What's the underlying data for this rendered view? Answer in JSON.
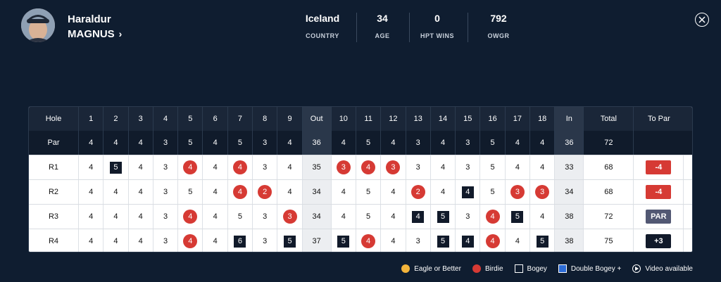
{
  "player": {
    "first_name": "Haraldur",
    "last_name": "MAGNUS"
  },
  "stats": [
    {
      "value": "Iceland",
      "label": "COUNTRY"
    },
    {
      "value": "34",
      "label": "AGE"
    },
    {
      "value": "0",
      "label": "HPT WINS"
    },
    {
      "value": "792",
      "label": "OWGR"
    }
  ],
  "scorecard": {
    "header": [
      "Hole",
      "1",
      "2",
      "3",
      "4",
      "5",
      "6",
      "7",
      "8",
      "9",
      "Out",
      "10",
      "11",
      "12",
      "13",
      "14",
      "15",
      "16",
      "17",
      "18",
      "In",
      "Total",
      "To Par"
    ],
    "par": [
      "Par",
      "4",
      "4",
      "4",
      "3",
      "5",
      "4",
      "5",
      "3",
      "4",
      "36",
      "4",
      "5",
      "4",
      "3",
      "4",
      "3",
      "5",
      "4",
      "4",
      "36",
      "72",
      ""
    ],
    "rounds": [
      {
        "label": "R1",
        "front": [
          {
            "v": "4",
            "t": ""
          },
          {
            "v": "5",
            "t": "bogey"
          },
          {
            "v": "4",
            "t": ""
          },
          {
            "v": "3",
            "t": ""
          },
          {
            "v": "4",
            "t": "birdie"
          },
          {
            "v": "4",
            "t": ""
          },
          {
            "v": "4",
            "t": "birdie"
          },
          {
            "v": "3",
            "t": ""
          },
          {
            "v": "4",
            "t": ""
          }
        ],
        "out": "35",
        "back": [
          {
            "v": "3",
            "t": "birdie"
          },
          {
            "v": "4",
            "t": "birdie"
          },
          {
            "v": "3",
            "t": "birdie"
          },
          {
            "v": "3",
            "t": ""
          },
          {
            "v": "4",
            "t": ""
          },
          {
            "v": "3",
            "t": ""
          },
          {
            "v": "5",
            "t": ""
          },
          {
            "v": "4",
            "t": ""
          },
          {
            "v": "4",
            "t": ""
          }
        ],
        "in": "33",
        "total": "68",
        "to_par": "-4",
        "to_par_type": "under"
      },
      {
        "label": "R2",
        "front": [
          {
            "v": "4",
            "t": ""
          },
          {
            "v": "4",
            "t": ""
          },
          {
            "v": "4",
            "t": ""
          },
          {
            "v": "3",
            "t": ""
          },
          {
            "v": "5",
            "t": ""
          },
          {
            "v": "4",
            "t": ""
          },
          {
            "v": "4",
            "t": "birdie"
          },
          {
            "v": "2",
            "t": "birdie"
          },
          {
            "v": "4",
            "t": ""
          }
        ],
        "out": "34",
        "back": [
          {
            "v": "4",
            "t": ""
          },
          {
            "v": "5",
            "t": ""
          },
          {
            "v": "4",
            "t": ""
          },
          {
            "v": "2",
            "t": "birdie"
          },
          {
            "v": "4",
            "t": ""
          },
          {
            "v": "4",
            "t": "bogey"
          },
          {
            "v": "5",
            "t": ""
          },
          {
            "v": "3",
            "t": "birdie"
          },
          {
            "v": "3",
            "t": "birdie"
          }
        ],
        "in": "34",
        "total": "68",
        "to_par": "-4",
        "to_par_type": "under"
      },
      {
        "label": "R3",
        "front": [
          {
            "v": "4",
            "t": ""
          },
          {
            "v": "4",
            "t": ""
          },
          {
            "v": "4",
            "t": ""
          },
          {
            "v": "3",
            "t": ""
          },
          {
            "v": "4",
            "t": "birdie"
          },
          {
            "v": "4",
            "t": ""
          },
          {
            "v": "5",
            "t": ""
          },
          {
            "v": "3",
            "t": ""
          },
          {
            "v": "3",
            "t": "birdie"
          }
        ],
        "out": "34",
        "back": [
          {
            "v": "4",
            "t": ""
          },
          {
            "v": "5",
            "t": ""
          },
          {
            "v": "4",
            "t": ""
          },
          {
            "v": "4",
            "t": "bogey"
          },
          {
            "v": "5",
            "t": "bogey"
          },
          {
            "v": "3",
            "t": ""
          },
          {
            "v": "4",
            "t": "birdie"
          },
          {
            "v": "5",
            "t": "bogey"
          },
          {
            "v": "4",
            "t": ""
          }
        ],
        "in": "38",
        "total": "72",
        "to_par": "PAR",
        "to_par_type": "par"
      },
      {
        "label": "R4",
        "front": [
          {
            "v": "4",
            "t": ""
          },
          {
            "v": "4",
            "t": ""
          },
          {
            "v": "4",
            "t": ""
          },
          {
            "v": "3",
            "t": ""
          },
          {
            "v": "4",
            "t": "birdie"
          },
          {
            "v": "4",
            "t": ""
          },
          {
            "v": "6",
            "t": "bogey"
          },
          {
            "v": "3",
            "t": ""
          },
          {
            "v": "5",
            "t": "bogey"
          }
        ],
        "out": "37",
        "back": [
          {
            "v": "5",
            "t": "bogey"
          },
          {
            "v": "4",
            "t": "birdie"
          },
          {
            "v": "4",
            "t": ""
          },
          {
            "v": "3",
            "t": ""
          },
          {
            "v": "5",
            "t": "bogey"
          },
          {
            "v": "4",
            "t": "bogey"
          },
          {
            "v": "4",
            "t": "birdie"
          },
          {
            "v": "4",
            "t": ""
          },
          {
            "v": "5",
            "t": "bogey"
          }
        ],
        "in": "38",
        "total": "75",
        "to_par": "+3",
        "to_par_type": "over"
      }
    ]
  },
  "legend": [
    {
      "key": "eagle",
      "label": "Eagle or Better"
    },
    {
      "key": "birdie",
      "label": "Birdie"
    },
    {
      "key": "bogey",
      "label": "Bogey"
    },
    {
      "key": "dbl",
      "label": "Double Bogey +"
    },
    {
      "key": "video",
      "label": "Video available"
    }
  ],
  "colors": {
    "background": "#0f1d30",
    "birdie": "#d63a34",
    "eagle": "#f3b43b",
    "bogey": "#111a2a",
    "double_bogey": "#2d6cd6",
    "par_badge": "#525873"
  },
  "icons": {
    "close": "close-icon",
    "chevron": "chevron-right-icon",
    "video": "play-icon"
  }
}
